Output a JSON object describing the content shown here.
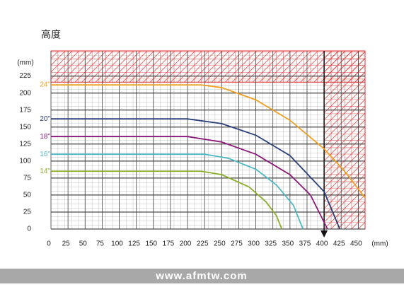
{
  "chart_data": {
    "type": "line",
    "title": "高度",
    "ylabel": "(mm)",
    "xlabel": "(mm)",
    "xlim": [
      0,
      460
    ],
    "ylim": [
      0,
      262
    ],
    "xticks": [
      0,
      25,
      50,
      75,
      100,
      125,
      150,
      175,
      200,
      225,
      250,
      275,
      300,
      325,
      350,
      375,
      400,
      425,
      450
    ],
    "yticks": [
      0,
      25,
      50,
      75,
      100,
      125,
      150,
      175,
      200,
      225
    ],
    "grid": true,
    "series": [
      {
        "name": "24\"",
        "color": "#f0a020",
        "x": [
          0,
          220,
          250,
          300,
          350,
          400,
          430,
          460
        ],
        "values": [
          212,
          212,
          208,
          190,
          160,
          118,
          85,
          46
        ]
      },
      {
        "name": "20\"",
        "color": "#2a3f7a",
        "x": [
          0,
          200,
          250,
          300,
          350,
          400,
          423
        ],
        "values": [
          162,
          162,
          155,
          138,
          108,
          55,
          0
        ]
      },
      {
        "name": "18\"",
        "color": "#8b1a7a",
        "x": [
          0,
          200,
          250,
          300,
          350,
          380,
          405
        ],
        "values": [
          136,
          136,
          128,
          110,
          80,
          50,
          0
        ]
      },
      {
        "name": "16\"",
        "color": "#4fb8c4",
        "x": [
          0,
          225,
          260,
          300,
          330,
          355,
          369
        ],
        "values": [
          110,
          110,
          104,
          88,
          65,
          35,
          0
        ]
      },
      {
        "name": "14\"",
        "color": "#8aae2a",
        "x": [
          0,
          220,
          250,
          290,
          315,
          330,
          338
        ],
        "values": [
          85,
          85,
          80,
          62,
          40,
          20,
          0
        ]
      }
    ],
    "regions": [
      {
        "xlim": [
          400,
          460
        ],
        "ylim": [
          0,
          262
        ],
        "color": "#e03030"
      },
      {
        "xlim": [
          0,
          460
        ],
        "ylim": [
          216,
          262
        ],
        "color": "#e03030"
      }
    ],
    "vline": 400
  },
  "footer": "www.afmtw.com"
}
